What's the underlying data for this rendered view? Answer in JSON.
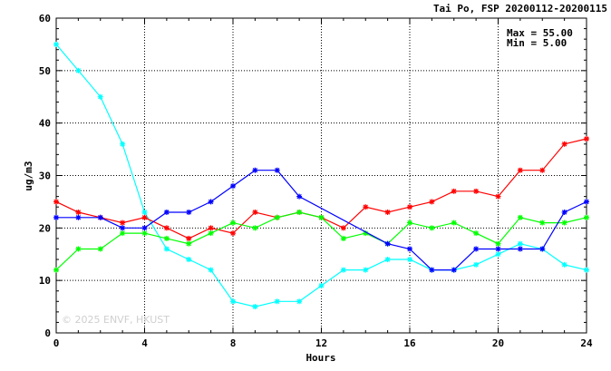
{
  "chart_data": {
    "type": "line",
    "title": "Tai Po, FSP 20200112-20200115",
    "xlabel": "Hours",
    "ylabel": "ug/m3",
    "xlim": [
      0,
      24
    ],
    "ylim": [
      0,
      60
    ],
    "x_ticks": [
      0,
      4,
      8,
      12,
      16,
      20,
      24
    ],
    "y_ticks": [
      0,
      10,
      20,
      30,
      40,
      50,
      60
    ],
    "grid": true,
    "grid_style": "dotted",
    "max_label": "Max = 55.00",
    "min_label": "Min =  5.00",
    "watermark": "© 2025  ENVF, HKUST",
    "x": [
      0,
      1,
      2,
      3,
      4,
      5,
      6,
      7,
      8,
      9,
      10,
      11,
      12,
      13,
      14,
      15,
      16,
      17,
      18,
      19,
      20,
      21,
      22,
      23,
      24
    ],
    "series": [
      {
        "color": "#00ffff",
        "values": [
          55,
          50,
          45,
          36,
          23,
          16,
          14,
          12,
          6,
          5,
          6,
          6,
          9,
          12,
          12,
          14,
          14,
          12,
          12,
          13,
          15,
          17,
          16,
          13,
          12
        ]
      },
      {
        "color": "#ff0000",
        "values": [
          25,
          23,
          22,
          21,
          22,
          20,
          18,
          20,
          19,
          23,
          22,
          23,
          22,
          20,
          24,
          23,
          24,
          25,
          27,
          27,
          26,
          31,
          31,
          36,
          37
        ]
      },
      {
        "color": "#00ff00",
        "values": [
          12,
          16,
          16,
          19,
          19,
          18,
          17,
          19,
          21,
          20,
          22,
          23,
          22,
          18,
          19,
          17,
          21,
          20,
          21,
          19,
          17,
          22,
          21,
          21,
          22
        ]
      },
      {
        "color": "#0000ff",
        "values": [
          22,
          22,
          22,
          20,
          20,
          23,
          23,
          25,
          28,
          31,
          31,
          26,
          null,
          null,
          null,
          17,
          16,
          12,
          12,
          16,
          16,
          16,
          16,
          23,
          25
        ]
      }
    ]
  }
}
